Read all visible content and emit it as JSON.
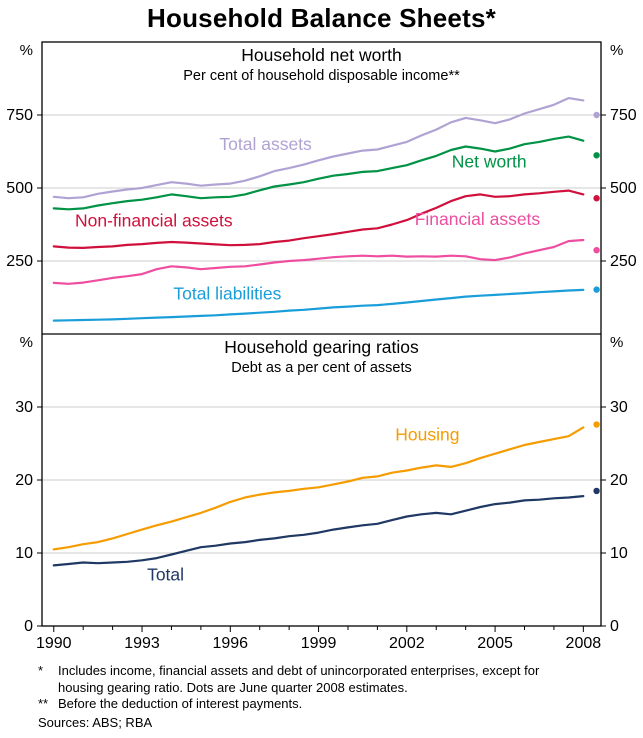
{
  "title": "Household Balance Sheets*",
  "x_axis": {
    "range": [
      1989.6,
      2008.6
    ],
    "ticks": [
      1990,
      1993,
      1996,
      1999,
      2002,
      2005,
      2008
    ]
  },
  "chart_data": [
    {
      "type": "line",
      "panel": "top",
      "title": "Household net worth",
      "subtitle": "Per cent of household disposable income**",
      "unit_left": "%",
      "unit_right": "%",
      "ylim": [
        0,
        1000
      ],
      "yticks": [
        250,
        500,
        750
      ],
      "x_start": 1990,
      "x_step": 0.5,
      "series": [
        {
          "name": "Total assets",
          "color": "#b0a3d4",
          "label_pos": {
            "x": 1997.2,
            "y": 630
          },
          "values": [
            470,
            465,
            468,
            480,
            488,
            495,
            500,
            510,
            520,
            515,
            508,
            512,
            515,
            525,
            540,
            558,
            568,
            580,
            595,
            608,
            618,
            628,
            632,
            645,
            658,
            680,
            700,
            725,
            740,
            732,
            722,
            735,
            755,
            770,
            785,
            808,
            800
          ],
          "dot": {
            "x": 2008.45,
            "value": 750
          }
        },
        {
          "name": "Net worth",
          "color": "#009245",
          "label_pos": {
            "x": 2004.8,
            "y": 570
          },
          "values": [
            430,
            427,
            430,
            440,
            448,
            455,
            460,
            468,
            478,
            472,
            465,
            468,
            470,
            478,
            492,
            505,
            512,
            520,
            532,
            542,
            548,
            555,
            558,
            568,
            578,
            595,
            610,
            630,
            642,
            635,
            625,
            635,
            650,
            658,
            668,
            676,
            662
          ],
          "dot": {
            "x": 2008.45,
            "value": 612
          }
        },
        {
          "name": "Non-financial assets",
          "color": "#d0103c",
          "label_pos": {
            "x": 1993.4,
            "y": 368
          },
          "values": [
            300,
            296,
            295,
            298,
            300,
            305,
            308,
            312,
            315,
            313,
            310,
            307,
            304,
            305,
            308,
            315,
            320,
            328,
            335,
            342,
            350,
            358,
            362,
            375,
            390,
            412,
            432,
            455,
            472,
            478,
            470,
            472,
            478,
            482,
            487,
            491,
            478
          ],
          "dot": {
            "x": 2008.45,
            "value": 465
          }
        },
        {
          "name": "Financial assets",
          "color": "#ee4da0",
          "label_pos": {
            "x": 2004.4,
            "y": 373
          },
          "values": [
            175,
            172,
            176,
            184,
            192,
            198,
            205,
            222,
            232,
            228,
            222,
            226,
            230,
            232,
            238,
            245,
            250,
            253,
            258,
            263,
            266,
            268,
            266,
            268,
            265,
            266,
            265,
            268,
            266,
            256,
            253,
            262,
            276,
            287,
            298,
            318,
            322
          ],
          "dot": {
            "x": 2008.45,
            "value": 287
          }
        },
        {
          "name": "Total liabilities",
          "color": "#1a9ed9",
          "label_pos": {
            "x": 1995.9,
            "y": 118
          },
          "values": [
            46,
            47,
            48,
            49,
            50,
            52,
            54,
            56,
            58,
            60,
            62,
            64,
            67,
            70,
            73,
            76,
            80,
            83,
            87,
            91,
            94,
            97,
            99,
            103,
            108,
            113,
            118,
            123,
            128,
            131,
            134,
            137,
            140,
            143,
            146,
            149,
            151
          ],
          "dot": {
            "x": 2008.45,
            "value": 152
          }
        }
      ]
    },
    {
      "type": "line",
      "panel": "bottom",
      "title": "Household gearing ratios",
      "subtitle": "Debt as a per cent of assets",
      "unit_left": "%",
      "unit_right": "%",
      "ylim": [
        0,
        40
      ],
      "yticks": [
        0,
        10,
        20,
        30
      ],
      "x_start": 1990,
      "x_step": 0.5,
      "series": [
        {
          "name": "Housing",
          "color": "#f59c00",
          "label_pos": {
            "x": 2002.7,
            "y": 25.4
          },
          "values": [
            10.5,
            10.8,
            11.2,
            11.5,
            12,
            12.6,
            13.2,
            13.8,
            14.3,
            14.9,
            15.5,
            16.2,
            17,
            17.6,
            18,
            18.3,
            18.5,
            18.8,
            19,
            19.4,
            19.8,
            20.3,
            20.5,
            21,
            21.3,
            21.7,
            22,
            21.8,
            22.3,
            23,
            23.6,
            24.2,
            24.8,
            25.2,
            25.6,
            26,
            27.2
          ],
          "dot": {
            "x": 2008.45,
            "value": 27.6
          }
        },
        {
          "name": "Total",
          "color": "#1f3864",
          "label_pos": {
            "x": 1993.8,
            "y": 6.2
          },
          "values": [
            8.3,
            8.5,
            8.7,
            8.6,
            8.7,
            8.8,
            9,
            9.3,
            9.8,
            10.3,
            10.8,
            11,
            11.3,
            11.5,
            11.8,
            12,
            12.3,
            12.5,
            12.8,
            13.2,
            13.5,
            13.8,
            14,
            14.5,
            15,
            15.3,
            15.5,
            15.3,
            15.8,
            16.3,
            16.7,
            16.9,
            17.2,
            17.3,
            17.5,
            17.6,
            17.8
          ],
          "dot": {
            "x": 2008.45,
            "value": 18.5
          }
        }
      ]
    }
  ],
  "style": {
    "grid_color": "#cccccc",
    "axis_color": "#000000"
  },
  "footnotes": [
    {
      "marker": "*",
      "text": "Includes income, financial assets and debt of unincorporated enterprises, except for housing gearing ratio. Dots are June quarter 2008 estimates."
    },
    {
      "marker": "**",
      "text": "Before the deduction of interest payments."
    }
  ],
  "sources": "Sources: ABS; RBA"
}
